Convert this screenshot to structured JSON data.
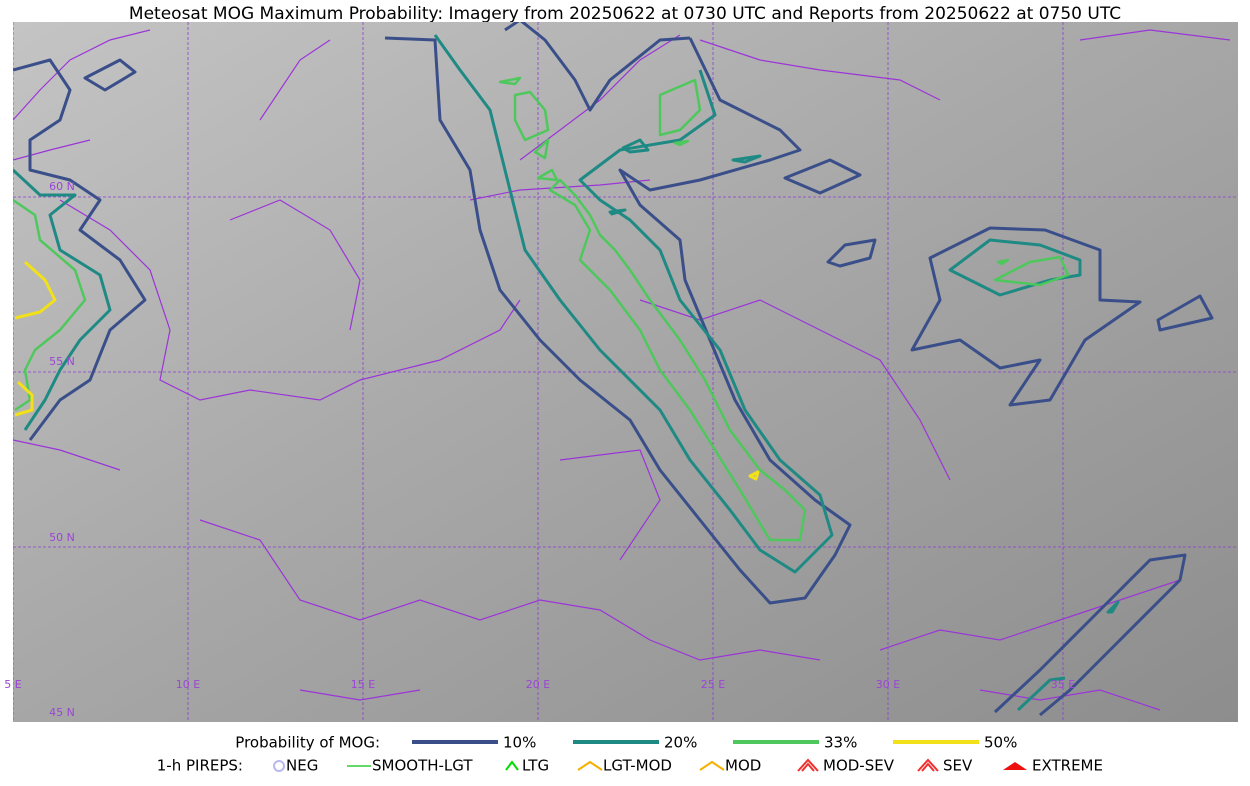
{
  "header": {
    "title": "Meteosat MOG Maximum Probability: Imagery from 20250622 at 0730 UTC and Reports from 20250622 at 0750 UTC"
  },
  "map": {
    "lon_labels": [
      "5 E",
      "10 E",
      "15 E",
      "20 E",
      "25 E",
      "30 E",
      "35 E"
    ],
    "lat_labels": [
      "60 N",
      "55 N",
      "50 N",
      "45 N"
    ]
  },
  "legend": {
    "mog_label": "Probability of MOG:",
    "mog_items": [
      {
        "label": "10%",
        "color": "#3a4f8a"
      },
      {
        "label": "20%",
        "color": "#1f8a84"
      },
      {
        "label": "33%",
        "color": "#4ec85c"
      },
      {
        "label": "50%",
        "color": "#f2e018"
      }
    ],
    "pirep_label": "1-h PIREPS:",
    "pirep_items": [
      {
        "label": "NEG",
        "color": "#b8b8f0"
      },
      {
        "label": "SMOOTH-LGT",
        "color": "#33cc33"
      },
      {
        "label": "LTG",
        "color": "#00dd00"
      },
      {
        "label": "LGT-MOD",
        "color": "#f5b000"
      },
      {
        "label": "MOD",
        "color": "#f5b000"
      },
      {
        "label": "MOD-SEV",
        "color": "#ee3030"
      },
      {
        "label": "SEV",
        "color": "#ee3030"
      },
      {
        "label": "EXTREME",
        "color": "#ee1010"
      }
    ]
  }
}
